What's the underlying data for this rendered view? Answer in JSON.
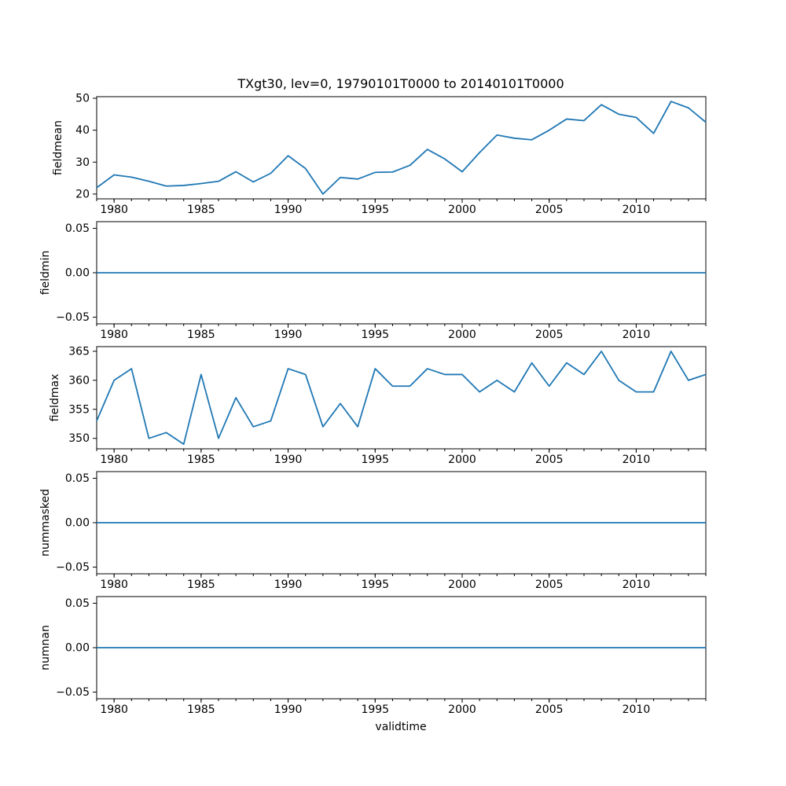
{
  "figure": {
    "background_color": "#ffffff",
    "line_color": "#1f77b4",
    "axis_color": "#000000"
  },
  "chart_data": {
    "type": "line",
    "title": "TXgt30, lev=0, 19790101T0000 to 20140101T0000",
    "xlabel": "validtime",
    "legend": "none",
    "grid": false,
    "x": [
      1979,
      1980,
      1981,
      1982,
      1983,
      1984,
      1985,
      1986,
      1987,
      1988,
      1989,
      1990,
      1991,
      1992,
      1993,
      1994,
      1995,
      1996,
      1997,
      1998,
      1999,
      2000,
      2001,
      2002,
      2003,
      2004,
      2005,
      2006,
      2007,
      2008,
      2009,
      2010,
      2011,
      2012,
      2013,
      2014
    ],
    "xlim": [
      1979,
      2014
    ],
    "xticks_major": [
      1980,
      1985,
      1990,
      1995,
      2000,
      2005,
      2010
    ],
    "xtick_labels": [
      "1980",
      "1985",
      "1990",
      "1995",
      "2000",
      "2005",
      "2010"
    ],
    "xticks_minor_every_years": 1,
    "subplots": [
      {
        "ylabel": "fieldmean",
        "values": [
          22,
          26,
          25.3,
          24,
          22.5,
          22.7,
          23.3,
          24,
          27,
          23.8,
          26.5,
          32,
          28,
          20,
          25.2,
          24.7,
          26.8,
          26.9,
          29,
          34,
          31,
          27,
          33,
          38.5,
          37.5,
          37,
          40,
          43.5,
          43,
          48,
          45,
          44,
          39,
          49,
          47,
          42.5
        ],
        "ylim": [
          18.5,
          50.5
        ],
        "ytick_values": [
          20,
          30,
          40,
          50
        ],
        "ytick_labels": [
          "20",
          "30",
          "40",
          "50"
        ]
      },
      {
        "ylabel": "fieldmin",
        "values": [
          0,
          0,
          0,
          0,
          0,
          0,
          0,
          0,
          0,
          0,
          0,
          0,
          0,
          0,
          0,
          0,
          0,
          0,
          0,
          0,
          0,
          0,
          0,
          0,
          0,
          0,
          0,
          0,
          0,
          0,
          0,
          0,
          0,
          0,
          0,
          0
        ],
        "ylim": [
          -0.0575,
          0.0575
        ],
        "ytick_values": [
          -0.05,
          0,
          0.05
        ],
        "ytick_labels": [
          "−0.05",
          "0.00",
          "0.05"
        ]
      },
      {
        "ylabel": "fieldmax",
        "values": [
          353,
          360,
          362,
          350,
          351,
          349,
          361,
          350,
          357,
          352,
          353,
          362,
          361,
          352,
          356,
          352,
          362,
          359,
          359,
          362,
          361,
          361,
          358,
          360,
          358,
          363,
          359,
          363,
          361,
          365,
          360,
          358,
          358,
          365,
          360,
          361
        ],
        "ylim": [
          348.2,
          365.8
        ],
        "ytick_values": [
          350,
          355,
          360,
          365
        ],
        "ytick_labels": [
          "350",
          "355",
          "360",
          "365"
        ]
      },
      {
        "ylabel": "nummasked",
        "values": [
          0,
          0,
          0,
          0,
          0,
          0,
          0,
          0,
          0,
          0,
          0,
          0,
          0,
          0,
          0,
          0,
          0,
          0,
          0,
          0,
          0,
          0,
          0,
          0,
          0,
          0,
          0,
          0,
          0,
          0,
          0,
          0,
          0,
          0,
          0,
          0
        ],
        "ylim": [
          -0.0575,
          0.0575
        ],
        "ytick_values": [
          -0.05,
          0,
          0.05
        ],
        "ytick_labels": [
          "−0.05",
          "0.00",
          "0.05"
        ]
      },
      {
        "ylabel": "numnan",
        "values": [
          0,
          0,
          0,
          0,
          0,
          0,
          0,
          0,
          0,
          0,
          0,
          0,
          0,
          0,
          0,
          0,
          0,
          0,
          0,
          0,
          0,
          0,
          0,
          0,
          0,
          0,
          0,
          0,
          0,
          0,
          0,
          0,
          0,
          0,
          0,
          0
        ],
        "ylim": [
          -0.0575,
          0.0575
        ],
        "ytick_values": [
          -0.05,
          0,
          0.05
        ],
        "ytick_labels": [
          "−0.05",
          "0.00",
          "0.05"
        ]
      }
    ]
  }
}
